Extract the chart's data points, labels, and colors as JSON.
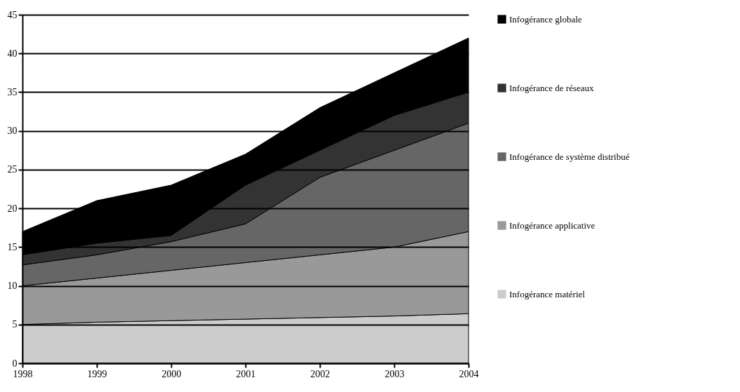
{
  "chart_data": {
    "type": "area",
    "stacked": true,
    "x": [
      1998,
      1999,
      2000,
      2001,
      2002,
      2003,
      2004
    ],
    "xlim": [
      1998,
      2004
    ],
    "xticks": [
      1998,
      1999,
      2000,
      2001,
      2002,
      2003,
      2004
    ],
    "ylim": [
      0,
      45
    ],
    "yticks": [
      0,
      5,
      10,
      15,
      20,
      25,
      30,
      35,
      40,
      45
    ],
    "grid": "y",
    "legend": "right",
    "series": [
      {
        "name": "Infogérance matériel",
        "color": "#cccccc",
        "values": [
          5,
          5.3,
          5.5,
          5.7,
          5.9,
          6.1,
          6.4
        ]
      },
      {
        "name": "Infogérance applicative",
        "color": "#999999",
        "values": [
          5,
          5.7,
          6.5,
          7.3,
          8.1,
          8.9,
          10.6
        ]
      },
      {
        "name": "Infogérance de système distribué",
        "color": "#666666",
        "values": [
          2.7,
          3,
          3.7,
          5,
          10,
          12.5,
          14
        ]
      },
      {
        "name": "Infogérance de réseaux",
        "color": "#333333",
        "values": [
          1.3,
          1.5,
          0.8,
          5,
          3.5,
          4.5,
          4
        ]
      },
      {
        "name": "Infogérance globale",
        "color": "#000000",
        "values": [
          3,
          5.5,
          6.5,
          4,
          5.5,
          5.5,
          7
        ]
      }
    ]
  }
}
